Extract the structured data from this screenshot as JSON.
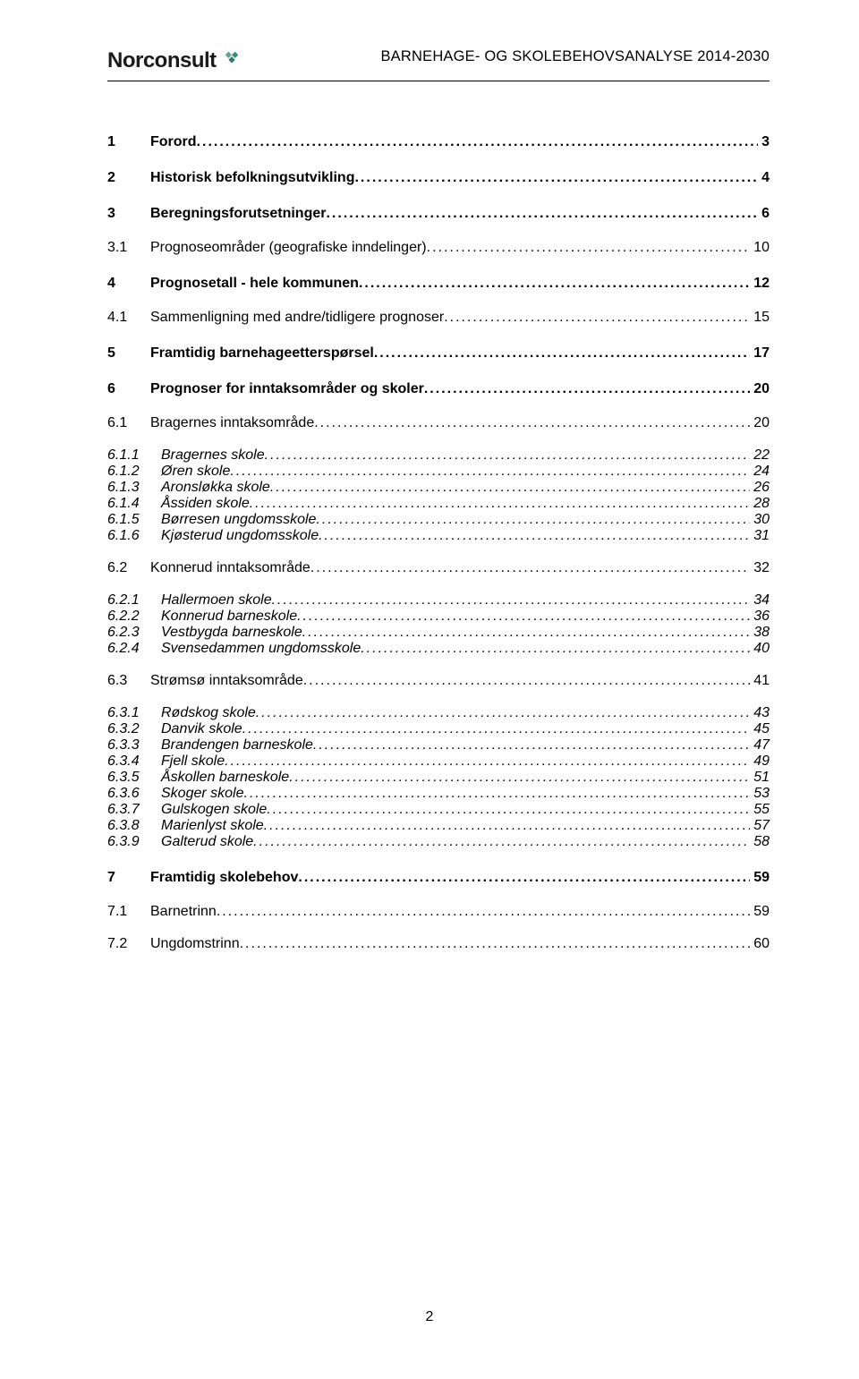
{
  "header": {
    "logo_text": "Norconsult",
    "doc_title": "BARNEHAGE- OG SKOLEBEHOVSANALYSE 2014-2030"
  },
  "page_number": "2",
  "toc": [
    {
      "lvl": 1,
      "num": "1",
      "label": "Forord",
      "page": "3"
    },
    {
      "lvl": 1,
      "num": "2",
      "label": "Historisk befolkningsutvikling",
      "page": "4"
    },
    {
      "lvl": 1,
      "num": "3",
      "label": "Beregningsforutsetninger",
      "page": "6"
    },
    {
      "lvl": 2,
      "num": "3.1",
      "label": "Prognoseområder (geografiske inndelinger)",
      "page": "10"
    },
    {
      "lvl": 1,
      "num": "4",
      "label": "Prognosetall - hele kommunen",
      "page": "12"
    },
    {
      "lvl": 2,
      "num": "4.1",
      "label": "Sammenligning med andre/tidligere prognoser",
      "page": "15"
    },
    {
      "lvl": 1,
      "num": "5",
      "label": "Framtidig barnehageetterspørsel",
      "page": "17"
    },
    {
      "lvl": 1,
      "num": "6",
      "label": "Prognoser for inntaksområder og skoler",
      "page": "20"
    },
    {
      "lvl": 2,
      "num": "6.1",
      "label": "Bragernes inntaksområde",
      "page": "20"
    },
    {
      "lvl": 3,
      "num": "6.1.1",
      "label": "Bragernes skole",
      "page": "22"
    },
    {
      "lvl": 3,
      "num": "6.1.2",
      "label": "Øren skole",
      "page": "24"
    },
    {
      "lvl": 3,
      "num": "6.1.3",
      "label": "Aronsløkka skole",
      "page": "26"
    },
    {
      "lvl": 3,
      "num": "6.1.4",
      "label": "Åssiden skole",
      "page": "28"
    },
    {
      "lvl": 3,
      "num": "6.1.5",
      "label": "Børresen ungdomsskole",
      "page": "30"
    },
    {
      "lvl": 3,
      "num": "6.1.6",
      "label": "Kjøsterud ungdomsskole",
      "page": "31"
    },
    {
      "lvl": 2,
      "num": "6.2",
      "label": "Konnerud inntaksområde",
      "page": "32"
    },
    {
      "lvl": 3,
      "num": "6.2.1",
      "label": "Hallermoen skole",
      "page": "34"
    },
    {
      "lvl": 3,
      "num": "6.2.2",
      "label": "Konnerud barneskole",
      "page": "36"
    },
    {
      "lvl": 3,
      "num": "6.2.3",
      "label": "Vestbygda barneskole",
      "page": "38"
    },
    {
      "lvl": 3,
      "num": "6.2.4",
      "label": "Svensedammen ungdomsskole",
      "page": "40"
    },
    {
      "lvl": 2,
      "num": "6.3",
      "label": "Strømsø inntaksområde",
      "page": "41"
    },
    {
      "lvl": 3,
      "num": "6.3.1",
      "label": "Rødskog skole",
      "page": "43"
    },
    {
      "lvl": 3,
      "num": "6.3.2",
      "label": "Danvik skole",
      "page": "45"
    },
    {
      "lvl": 3,
      "num": "6.3.3",
      "label": "Brandengen barneskole",
      "page": "47"
    },
    {
      "lvl": 3,
      "num": "6.3.4",
      "label": "Fjell skole",
      "page": "49"
    },
    {
      "lvl": 3,
      "num": "6.3.5",
      "label": "Åskollen barneskole",
      "page": "51"
    },
    {
      "lvl": 3,
      "num": "6.3.6",
      "label": "Skoger skole",
      "page": "53"
    },
    {
      "lvl": 3,
      "num": "6.3.7",
      "label": "Gulskogen skole",
      "page": "55"
    },
    {
      "lvl": 3,
      "num": "6.3.8",
      "label": "Marienlyst skole",
      "page": "57"
    },
    {
      "lvl": 3,
      "num": "6.3.9",
      "label": "Galterud skole",
      "page": "58"
    },
    {
      "lvl": 1,
      "num": "7",
      "label": "Framtidig skolebehov",
      "page": "59"
    },
    {
      "lvl": 2,
      "num": "7.1",
      "label": "Barnetrinn",
      "page": "59"
    },
    {
      "lvl": 2,
      "num": "7.2",
      "label": "Ungdomstrinn",
      "page": "60"
    }
  ]
}
